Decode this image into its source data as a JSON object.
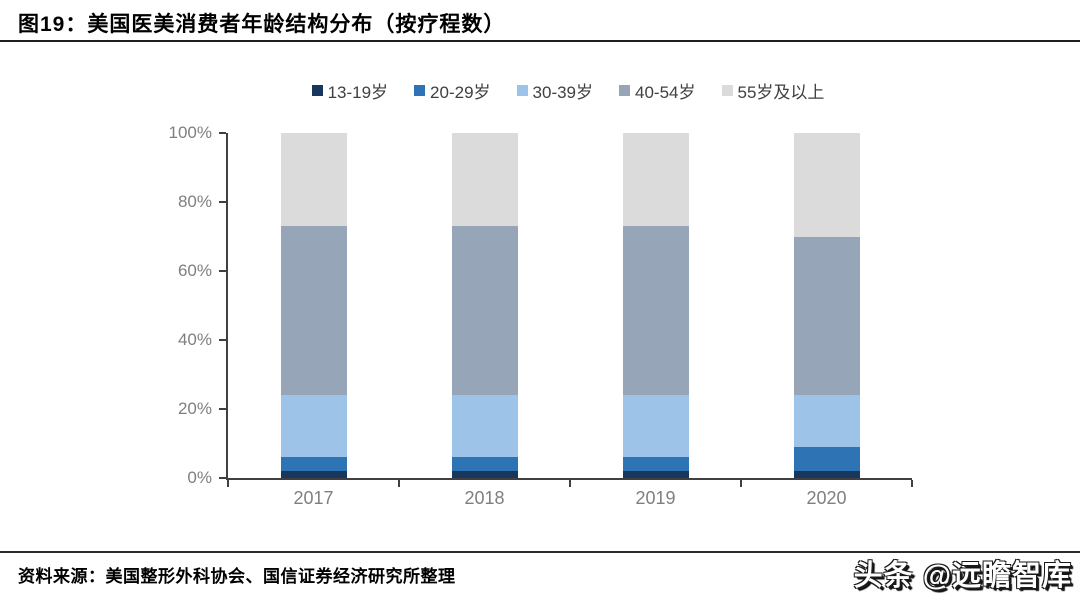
{
  "title": "图19：美国医美消费者年龄结构分布（按疗程数）",
  "source_note": "资料来源：美国整形外科协会、国信证券经济研究所整理",
  "watermark": "头条 @远瞻智库",
  "colors": {
    "axis": "#404040",
    "tick_label": "#7f7f7f",
    "legend_text": "#404040",
    "title_text": "#000000",
    "rule": "#1f1f1f"
  },
  "chart_data": {
    "type": "bar",
    "stacked": true,
    "title": "美国医美消费者年龄结构分布（按疗程数）",
    "categories": [
      "2017",
      "2018",
      "2019",
      "2020"
    ],
    "series": [
      {
        "name": "13-19岁",
        "color": "#17375E",
        "values": [
          2,
          2,
          2,
          2
        ]
      },
      {
        "name": "20-29岁",
        "color": "#2E74B5",
        "values": [
          4,
          4,
          4,
          7
        ]
      },
      {
        "name": "30-39岁",
        "color": "#9DC3E8",
        "values": [
          18,
          18,
          18,
          15
        ]
      },
      {
        "name": "40-54岁",
        "color": "#97A5B8",
        "values": [
          49,
          49,
          49,
          46
        ]
      },
      {
        "name": "55岁及以上",
        "color": "#DBDBDB",
        "values": [
          27,
          27,
          27,
          30
        ]
      }
    ],
    "xlabel": "",
    "ylabel": "",
    "ylim": [
      0,
      100
    ],
    "yticks": [
      0,
      20,
      40,
      60,
      80,
      100
    ],
    "ytick_suffix": "%",
    "grid": false,
    "legend_position": "top",
    "units": "percent of treatments"
  }
}
